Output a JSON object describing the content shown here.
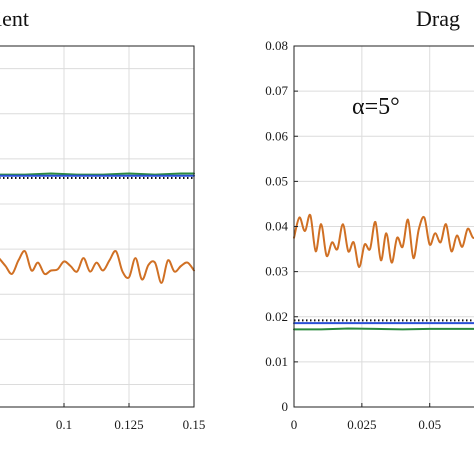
{
  "chart_data": [
    {
      "type": "line",
      "title": "ient",
      "xlim": [
        0.075,
        0.15
      ],
      "x_ticks": [
        "0.1",
        "0.125",
        "0.15"
      ],
      "x_tick_values": [
        0.1,
        0.125,
        0.15
      ],
      "grid": true,
      "series": [
        {
          "color": "#2b8a3e",
          "x": [
            0.075,
            0.085,
            0.095,
            0.105,
            0.115,
            0.125,
            0.135,
            0.145,
            0.15
          ],
          "values": [
            0.706,
            0.706,
            0.707,
            0.706,
            0.706,
            0.707,
            0.706,
            0.707,
            0.707
          ]
        },
        {
          "color": "#2a4fd6",
          "x": [
            0.075,
            0.1,
            0.125,
            0.15
          ],
          "values": [
            0.705,
            0.705,
            0.705,
            0.705
          ]
        },
        {
          "color": "#111111",
          "style": "dotted",
          "x": [
            0.075,
            0.15
          ],
          "values": [
            0.703,
            0.703
          ]
        },
        {
          "color": "#d07024",
          "x": [
            0.075,
            0.0775,
            0.08,
            0.0825,
            0.085,
            0.0875,
            0.09,
            0.0925,
            0.095,
            0.0975,
            0.1,
            0.1025,
            0.105,
            0.1075,
            0.11,
            0.1125,
            0.115,
            0.1175,
            0.12,
            0.1225,
            0.125,
            0.1275,
            0.13,
            0.1325,
            0.135,
            0.1375,
            0.14,
            0.1425,
            0.145,
            0.1475,
            0.15
          ],
          "values": [
            0.632,
            0.625,
            0.618,
            0.63,
            0.638,
            0.621,
            0.628,
            0.618,
            0.621,
            0.622,
            0.629,
            0.625,
            0.62,
            0.632,
            0.62,
            0.628,
            0.621,
            0.63,
            0.638,
            0.62,
            0.615,
            0.632,
            0.613,
            0.626,
            0.628,
            0.61,
            0.63,
            0.62,
            0.625,
            0.628,
            0.621
          ]
        }
      ]
    },
    {
      "type": "line",
      "title": "Drag",
      "annotation": "α=5°",
      "xlim": [
        0,
        0.07
      ],
      "ylim": [
        0,
        0.08
      ],
      "x_ticks": [
        "0",
        "0.025",
        "0.05"
      ],
      "x_tick_values": [
        0,
        0.025,
        0.05
      ],
      "y_ticks": [
        "0",
        "0.01",
        "0.02",
        "0.03",
        "0.04",
        "0.05",
        "0.06",
        "0.07",
        "0.08"
      ],
      "y_tick_values": [
        0,
        0.01,
        0.02,
        0.03,
        0.04,
        0.05,
        0.06,
        0.07,
        0.08
      ],
      "grid": true,
      "series": [
        {
          "color": "#2b8a3e",
          "x": [
            0,
            0.01,
            0.02,
            0.03,
            0.04,
            0.05,
            0.06,
            0.07
          ],
          "values": [
            0.0172,
            0.0172,
            0.0174,
            0.0173,
            0.0172,
            0.0173,
            0.0173,
            0.0173
          ]
        },
        {
          "color": "#2a4fd6",
          "x": [
            0,
            0.07
          ],
          "values": [
            0.0186,
            0.0186
          ]
        },
        {
          "color": "#111111",
          "style": "dotted",
          "x": [
            0,
            0.07
          ],
          "values": [
            0.0192,
            0.0192
          ]
        },
        {
          "color": "#d07024",
          "x": [
            0,
            0.002,
            0.004,
            0.006,
            0.008,
            0.01,
            0.012,
            0.014,
            0.016,
            0.018,
            0.02,
            0.022,
            0.024,
            0.026,
            0.028,
            0.03,
            0.032,
            0.034,
            0.036,
            0.038,
            0.04,
            0.042,
            0.044,
            0.046,
            0.048,
            0.05,
            0.052,
            0.054,
            0.056,
            0.058,
            0.06,
            0.062,
            0.064,
            0.066,
            0.068,
            0.07
          ],
          "values": [
            0.0375,
            0.042,
            0.039,
            0.0425,
            0.0345,
            0.0405,
            0.0335,
            0.0365,
            0.035,
            0.0405,
            0.0345,
            0.0365,
            0.031,
            0.036,
            0.035,
            0.041,
            0.0325,
            0.0385,
            0.032,
            0.0375,
            0.0355,
            0.0415,
            0.033,
            0.0395,
            0.042,
            0.036,
            0.0385,
            0.0365,
            0.0405,
            0.0345,
            0.038,
            0.0355,
            0.0395,
            0.0375,
            0.038,
            0.0385
          ]
        }
      ]
    }
  ]
}
